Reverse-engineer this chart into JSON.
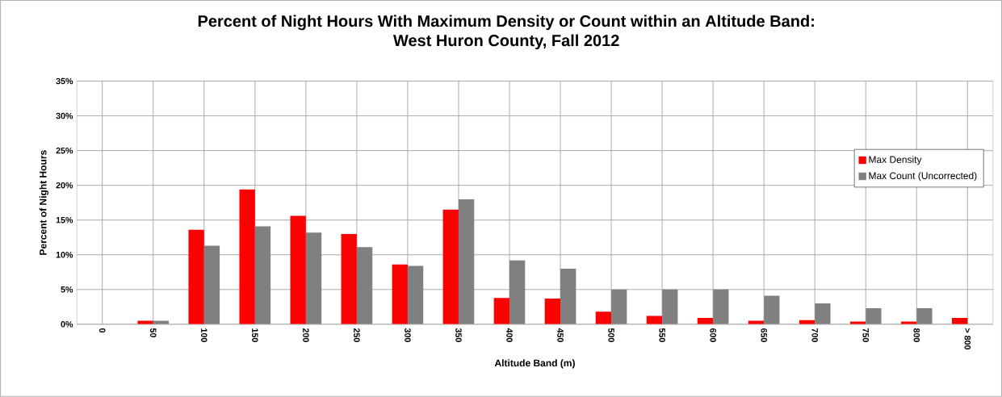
{
  "chart_data": {
    "type": "bar",
    "title": "Percent of Night Hours With Maximum Density or Count within an Altitude Band:",
    "subtitle": "West Huron County, Fall 2012",
    "xlabel": "Altitude Band (m)",
    "ylabel": "Percent of Night Hours",
    "categories": [
      "0",
      "50",
      "100",
      "150",
      "200",
      "250",
      "300",
      "350",
      "400",
      "450",
      "500",
      "550",
      "600",
      "650",
      "700",
      "750",
      "800",
      "> 800"
    ],
    "series": [
      {
        "name": "Max Density",
        "color": "#ff0000",
        "values": [
          null,
          0.5,
          13.6,
          19.4,
          15.6,
          13.0,
          8.6,
          16.5,
          3.8,
          3.7,
          1.8,
          1.2,
          0.9,
          0.5,
          0.6,
          0.4,
          0.4,
          0.9
        ]
      },
      {
        "name": "Max Count (Uncorrected)",
        "color": "#808080",
        "values": [
          0,
          0.5,
          11.3,
          14.1,
          13.2,
          11.1,
          8.4,
          18.0,
          9.2,
          8.0,
          5.0,
          5.0,
          5.0,
          4.1,
          3.0,
          2.3,
          2.3,
          null
        ]
      }
    ],
    "ylim": [
      0,
      35
    ],
    "yticks": [
      {
        "value": 0,
        "label": "0%"
      },
      {
        "value": 5,
        "label": "5%"
      },
      {
        "value": 10,
        "label": "10%"
      },
      {
        "value": 15,
        "label": "15%"
      },
      {
        "value": 20,
        "label": "20%"
      },
      {
        "value": 25,
        "label": "25%"
      },
      {
        "value": 30,
        "label": "30%"
      },
      {
        "value": 35,
        "label": "35%"
      }
    ],
    "grid": true,
    "legend": "right"
  }
}
